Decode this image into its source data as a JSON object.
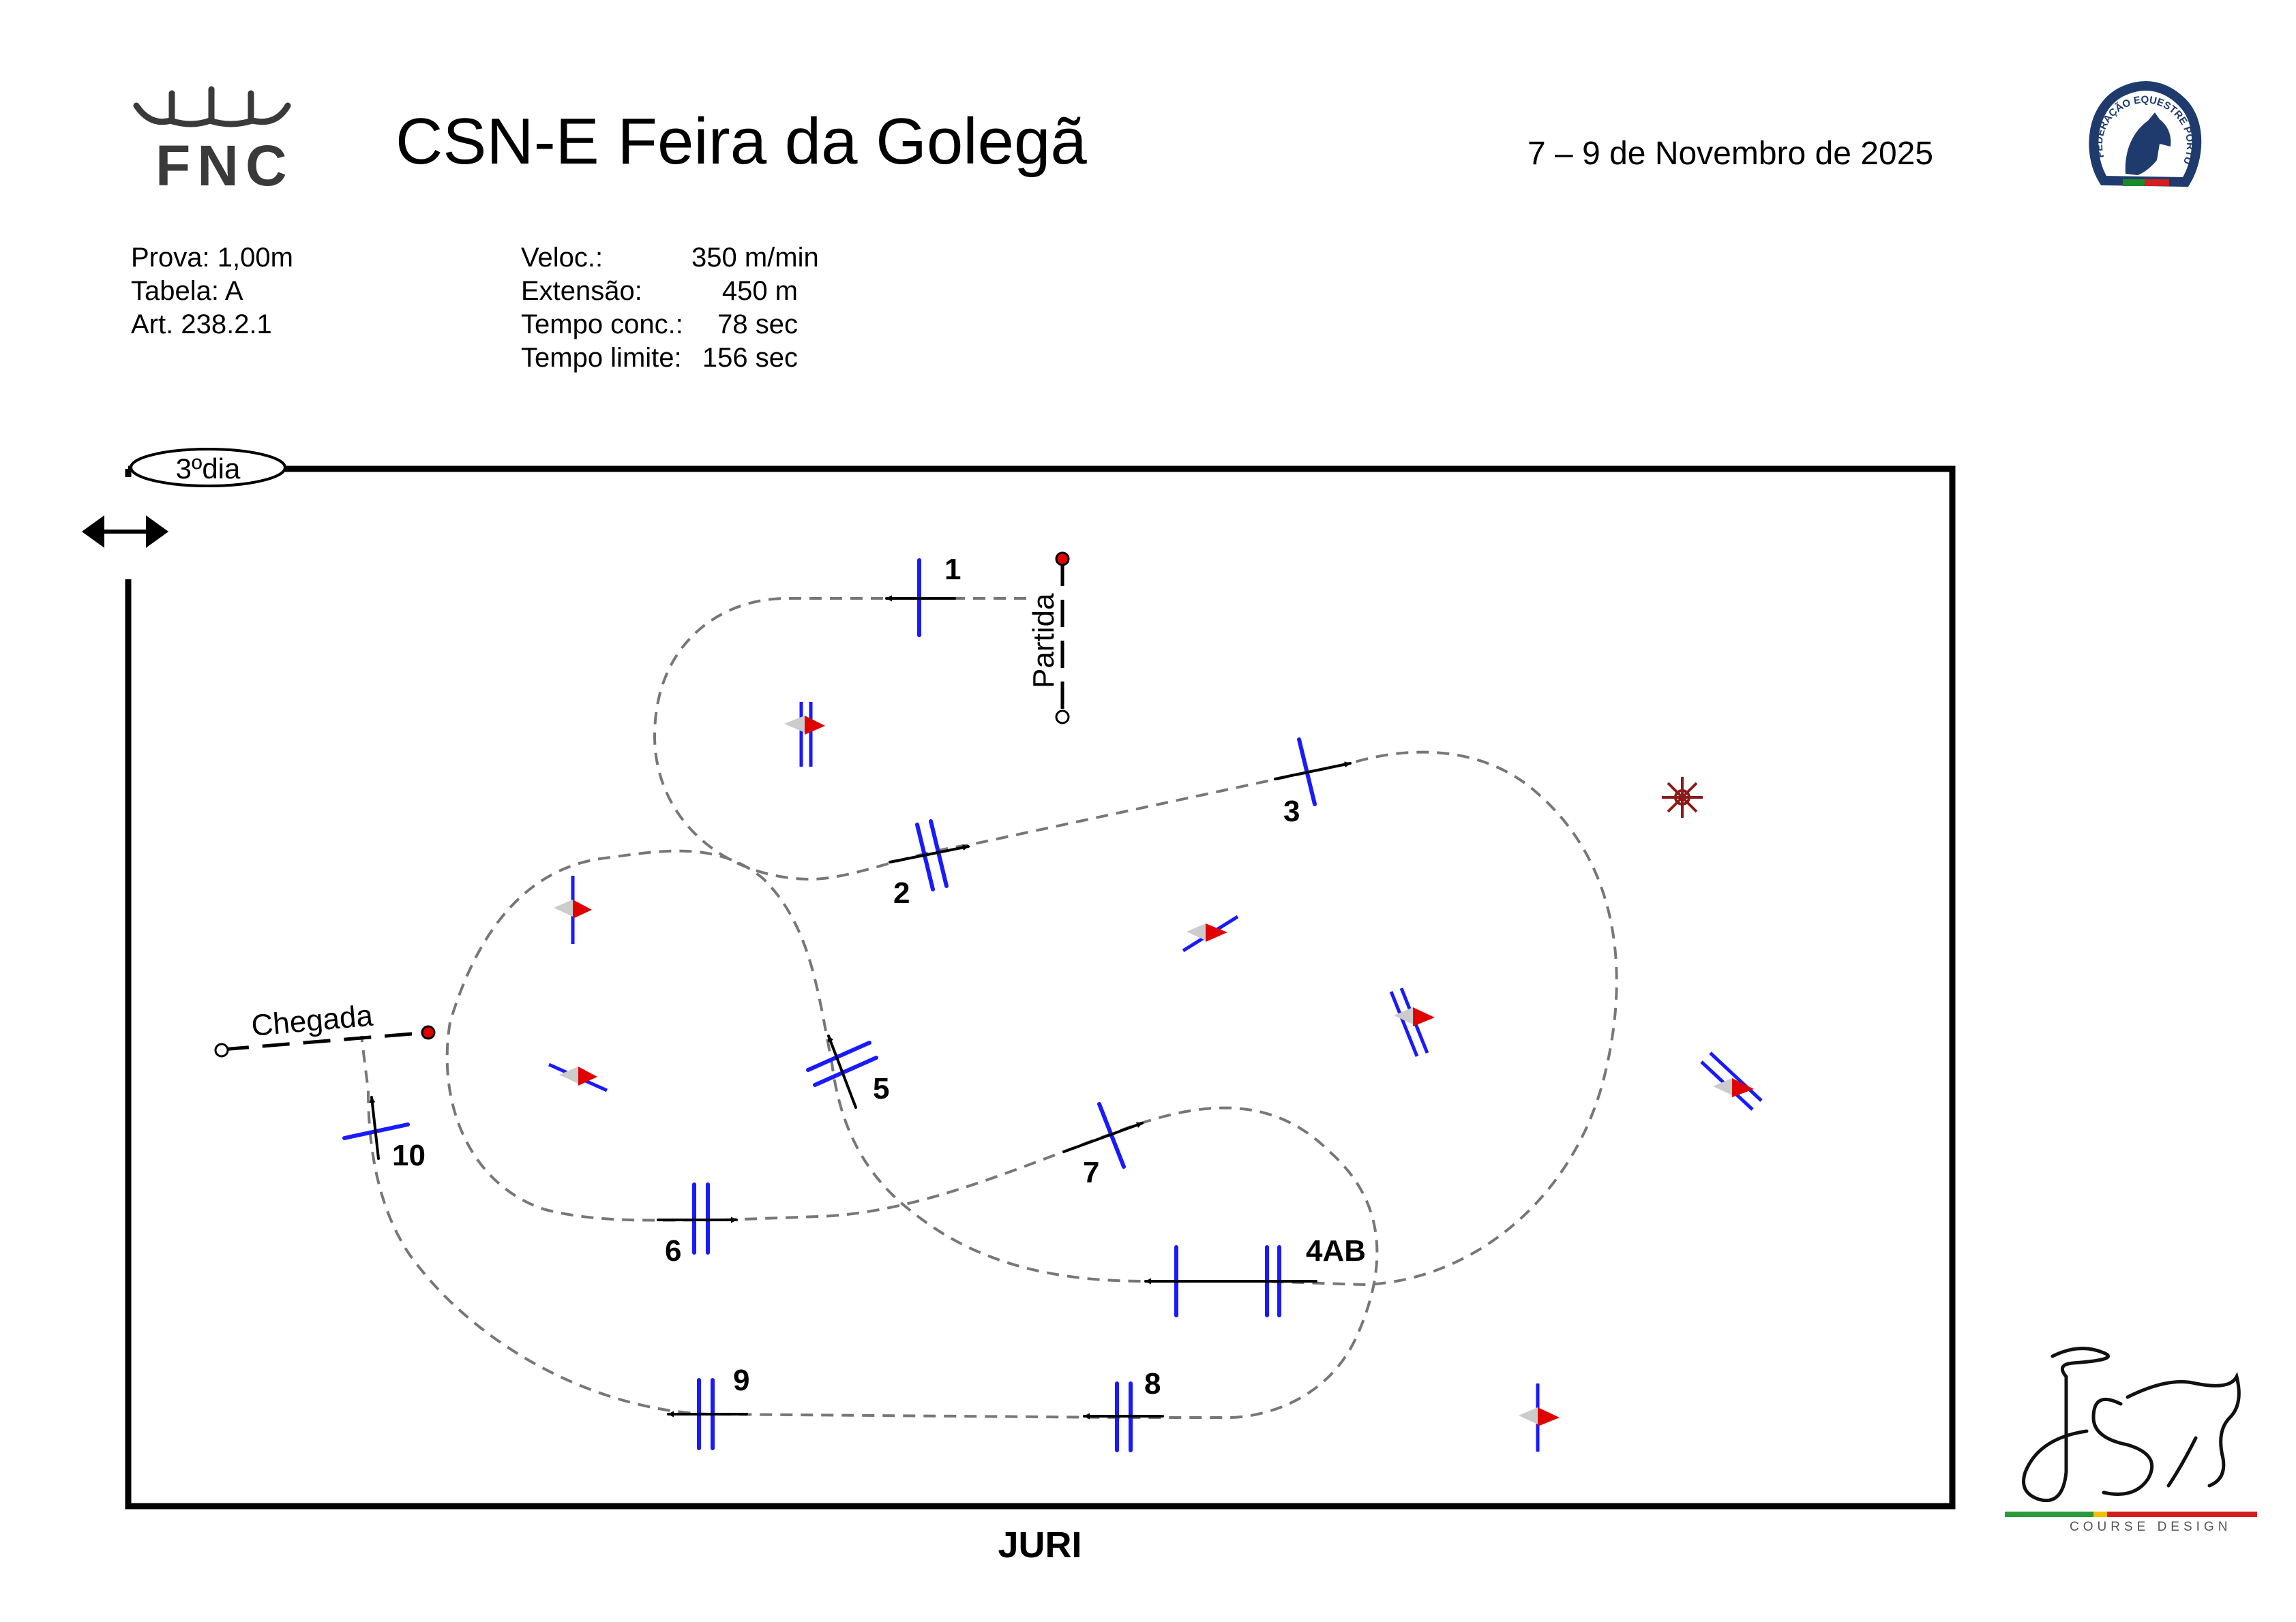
{
  "header": {
    "org_logo_text": "FNC",
    "title": "CSN-E Feira da Golegã",
    "dates": "7 – 9 de Novembro de 2025",
    "federation_logo_text": "FEDERAÇÃO EQUESTRE PORTUGUESA"
  },
  "class_info": {
    "prova": "Prova: 1,00m",
    "tabela": "Tabela: A",
    "artigo": "Art. 238.2.1"
  },
  "course_info": {
    "speed_label": "Veloc.:",
    "speed_value": "350 m/min",
    "length_label": "Extensão:",
    "length_value": "450 m",
    "time_allowed_label": "Tempo conc.:",
    "time_allowed_value": "78 sec",
    "time_limit_label": "Tempo limite:",
    "time_limit_value": "156 sec"
  },
  "arena": {
    "day_label": "3ºdia",
    "start_label": "Partida",
    "finish_label": "Chegada",
    "jury_label": "JURI"
  },
  "obstacles": [
    {
      "number": "1",
      "type": "vertical"
    },
    {
      "number": "2",
      "type": "oxer"
    },
    {
      "number": "3",
      "type": "vertical"
    },
    {
      "number": "4AB",
      "type": "double"
    },
    {
      "number": "5",
      "type": "oxer"
    },
    {
      "number": "6",
      "type": "oxer"
    },
    {
      "number": "7",
      "type": "vertical"
    },
    {
      "number": "8",
      "type": "oxer"
    },
    {
      "number": "9",
      "type": "oxer"
    },
    {
      "number": "10",
      "type": "vertical"
    }
  ],
  "designer_logo": {
    "monogram": "JS",
    "tagline": "COURSE DESIGN"
  },
  "colors": {
    "fence": "#1a1aff",
    "flag_red": "#e00000",
    "track": "#777777",
    "start_finish_dot": "#e00000",
    "decoration": "#8b1a1a"
  }
}
